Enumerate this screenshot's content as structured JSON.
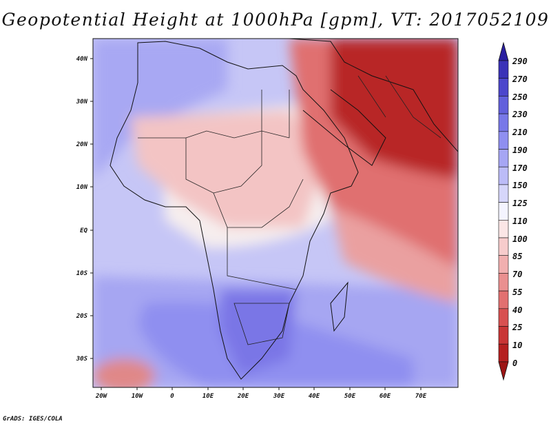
{
  "title": "Geopotential Height at 1000hPa [gpm], VT: 2017052109",
  "credit": "GrADS: IGES/COLA",
  "map": {
    "lon_labels": [
      "20W",
      "10W",
      "0",
      "10E",
      "20E",
      "30E",
      "40E",
      "50E",
      "60E",
      "70E"
    ],
    "lat_labels": [
      "40N",
      "30N",
      "20N",
      "10N",
      "EQ",
      "10S",
      "20S",
      "30S"
    ]
  },
  "colorbar": {
    "levels": [
      "290",
      "270",
      "250",
      "230",
      "210",
      "190",
      "170",
      "150",
      "125",
      "110",
      "100",
      "85",
      "70",
      "55",
      "40",
      "25",
      "10",
      "0"
    ],
    "colors": [
      "#2a1fa0",
      "#3a32b8",
      "#4c46cc",
      "#6260dc",
      "#7878e8",
      "#8f8ff0",
      "#a6a6f4",
      "#bcbcf7",
      "#d6d6fa",
      "#f4f4ff",
      "#fbe6e6",
      "#f7cccc",
      "#f1afaf",
      "#ea9090",
      "#e27070",
      "#d85050",
      "#c93535",
      "#b52020",
      "#9c1515"
    ]
  }
}
